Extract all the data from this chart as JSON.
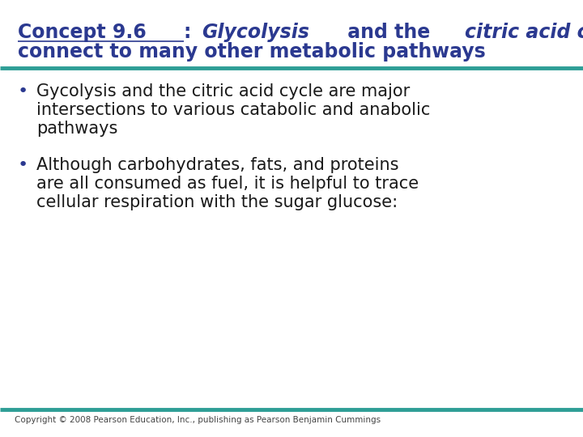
{
  "bg_color": "#ffffff",
  "title_color": "#2B3990",
  "separator_color": "#2E9E96",
  "bullet_color": "#2B3990",
  "body_color": "#1a1a1a",
  "copyright_color": "#444444",
  "title_line1_p1": "Concept 9.6",
  "title_line1_p2": ": ",
  "title_line1_p3": "Glycolysis",
  "title_line1_p4": " and the ",
  "title_line1_p5": "citric acid cycle",
  "title_line2": "connect to many other metabolic pathways",
  "bullet1_line1": "Gycolysis and the citric acid cycle are major",
  "bullet1_line2": "intersections to various catabolic and anabolic",
  "bullet1_line3": "pathways",
  "bullet2_line1": "Although carbohydrates, fats, and proteins",
  "bullet2_line2": "are all consumed as fuel, it is helpful to trace",
  "bullet2_line3": "cellular respiration with the sugar glucose:",
  "copyright": "Copyright © 2008 Pearson Education, Inc., publishing as Pearson Benjamin Cummings",
  "title_fontsize": 17,
  "body_fontsize": 15,
  "copyright_fontsize": 7.5,
  "fig_width": 7.2,
  "fig_height": 5.4,
  "dpi": 100
}
